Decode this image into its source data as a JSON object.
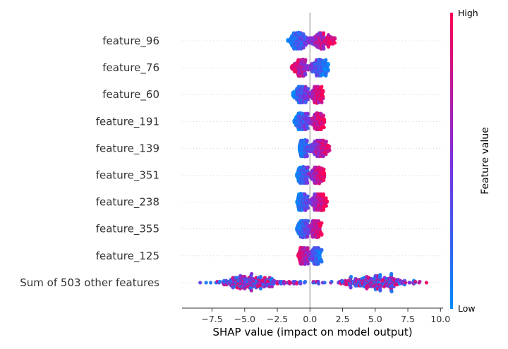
{
  "chart_data": {
    "type": "scatter",
    "subtype": "shap-beeswarm",
    "title": "",
    "xlabel": "SHAP value (impact on model output)",
    "ylabel": "",
    "xlim": [
      -9.8,
      10.2
    ],
    "xticks": [
      -7.5,
      -5.0,
      -2.5,
      0.0,
      2.5,
      5.0,
      7.5,
      10.0
    ],
    "xtick_labels": [
      "−7.5",
      "−5.0",
      "−2.5",
      "0.0",
      "2.5",
      "5.0",
      "7.5",
      "10.0"
    ],
    "zero_line": 0,
    "grid": false,
    "colorbar": {
      "title": "Feature value",
      "high_label": "High",
      "low_label": "Low",
      "low_color": "#008bfb",
      "mid_color": "#7c2fe0",
      "high_color": "#ff0052"
    },
    "features": [
      {
        "name": "feature_96",
        "shap_min": -1.7,
        "shap_max": 1.9,
        "high_value_side": "positive"
      },
      {
        "name": "feature_76",
        "shap_min": -1.4,
        "shap_max": 1.4,
        "high_value_side": "negative"
      },
      {
        "name": "feature_60",
        "shap_min": -1.3,
        "shap_max": 1.0,
        "high_value_side": "positive"
      },
      {
        "name": "feature_191",
        "shap_min": -1.2,
        "shap_max": 1.1,
        "high_value_side": "positive"
      },
      {
        "name": "feature_139",
        "shap_min": -0.8,
        "shap_max": 1.5,
        "high_value_side": "positive"
      },
      {
        "name": "feature_351",
        "shap_min": -1.0,
        "shap_max": 1.1,
        "high_value_side": "positive"
      },
      {
        "name": "feature_238",
        "shap_min": -1.0,
        "shap_max": 1.3,
        "high_value_side": "positive"
      },
      {
        "name": "feature_355",
        "shap_min": -1.0,
        "shap_max": 0.9,
        "high_value_side": "positive"
      },
      {
        "name": "feature_125",
        "shap_min": -0.9,
        "shap_max": 0.9,
        "high_value_side": "negative"
      },
      {
        "name": "Sum of 503 other features",
        "shap_min": -8.9,
        "shap_max": 9.3,
        "high_value_side": "mixed"
      }
    ]
  }
}
